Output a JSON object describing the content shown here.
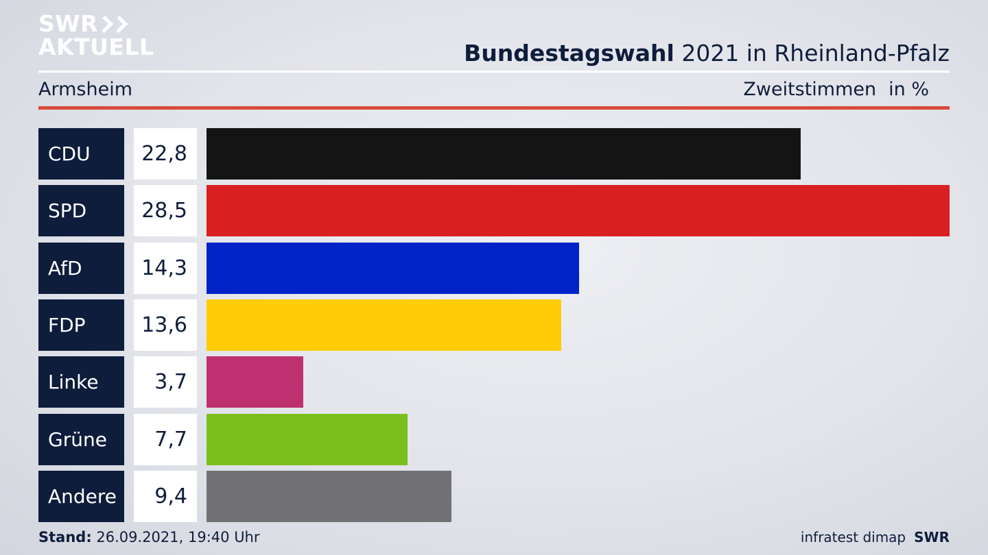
{
  "logo": {
    "line1": "SWR",
    "line2": "AKTUELL"
  },
  "header": {
    "title_bold": "Bundestagswahl",
    "title_rest": "2021 in Rheinland-Pfalz"
  },
  "subheader": {
    "region": "Armsheim",
    "measure": "Zweitstimmen",
    "unit": "in %"
  },
  "chart_data": {
    "type": "bar",
    "categories": [
      "CDU",
      "SPD",
      "AfD",
      "FDP",
      "Linke",
      "Grüne",
      "Andere"
    ],
    "values": [
      22.8,
      28.5,
      14.3,
      13.6,
      3.7,
      7.7,
      9.4
    ],
    "value_labels": [
      "22,8",
      "28,5",
      "14,3",
      "13,6",
      "3,7",
      "7,7",
      "9,4"
    ],
    "colors": [
      "#141414",
      "#d82020",
      "#0023c8",
      "#ffcc07",
      "#bf3070",
      "#7abf1c",
      "#727274"
    ],
    "title": "Bundestagswahl 2021 in Rheinland-Pfalz",
    "orientation": "horizontal",
    "xlim": [
      0,
      28.5
    ]
  },
  "footer": {
    "stand_label": "Stand:",
    "stand_value": "26.09.2021, 19:40 Uhr",
    "source": "infratest dimap",
    "brand": "SWR"
  }
}
